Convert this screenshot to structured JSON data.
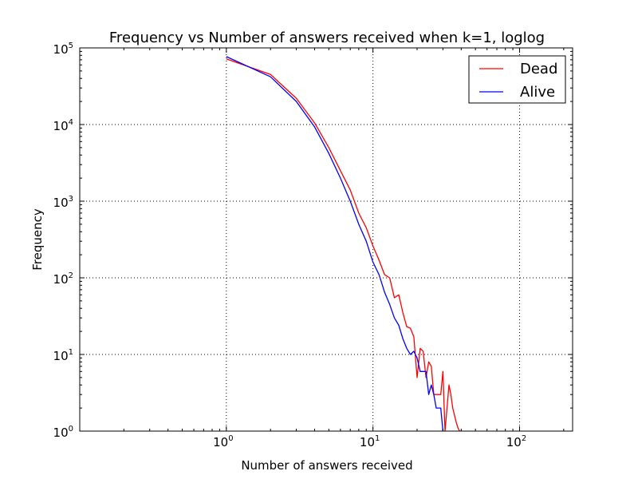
{
  "chart_data": {
    "type": "line",
    "title": "Frequency vs Number of answers received when k=1, loglog",
    "xlabel": "Number of answers received",
    "ylabel": "Frequency",
    "xscale": "log",
    "yscale": "log",
    "xlim": [
      0.1,
      230
    ],
    "ylim": [
      1,
      100000
    ],
    "grid": true,
    "legend_position": "top-right",
    "x_ticks": [
      {
        "base": "10",
        "exp": "0",
        "value": 1
      },
      {
        "base": "10",
        "exp": "1",
        "value": 10
      },
      {
        "base": "10",
        "exp": "2",
        "value": 100
      }
    ],
    "y_ticks": [
      {
        "base": "10",
        "exp": "0",
        "value": 1
      },
      {
        "base": "10",
        "exp": "1",
        "value": 10
      },
      {
        "base": "10",
        "exp": "2",
        "value": 100
      },
      {
        "base": "10",
        "exp": "3",
        "value": 1000
      },
      {
        "base": "10",
        "exp": "4",
        "value": 10000
      },
      {
        "base": "10",
        "exp": "5",
        "value": 100000
      }
    ],
    "series": [
      {
        "name": "Dead",
        "color": "#ff0000",
        "x": [
          1,
          2,
          3,
          4,
          5,
          6,
          7,
          8,
          9,
          10,
          11,
          12,
          13,
          14,
          15,
          16,
          17,
          18,
          19,
          20,
          21,
          22,
          23,
          24,
          25,
          26,
          27,
          28,
          29,
          30,
          31,
          32,
          33,
          34,
          35,
          36,
          37,
          38,
          39,
          40
        ],
        "y": [
          72000,
          45000,
          22000,
          10500,
          5000,
          2500,
          1400,
          700,
          450,
          260,
          170,
          110,
          100,
          55,
          60,
          35,
          23,
          22,
          17,
          5,
          12,
          11,
          5,
          8,
          7,
          3,
          3,
          3,
          3,
          6,
          1,
          2,
          4,
          3,
          2,
          1.6,
          1.3,
          1.1,
          1,
          1
        ]
      },
      {
        "name": "Alive",
        "color": "#0000ff",
        "x": [
          1,
          2,
          3,
          4,
          5,
          6,
          7,
          8,
          9,
          10,
          11,
          12,
          13,
          14,
          15,
          16,
          17,
          18,
          19,
          20,
          21,
          22,
          23,
          24,
          25,
          26,
          27,
          28,
          29,
          30
        ],
        "y": [
          77000,
          42000,
          20000,
          9300,
          4200,
          2000,
          1000,
          500,
          300,
          160,
          110,
          65,
          45,
          30,
          24,
          16,
          12,
          10,
          11,
          9,
          6,
          6,
          6,
          3,
          4,
          3,
          2,
          2,
          2,
          1
        ]
      }
    ]
  }
}
